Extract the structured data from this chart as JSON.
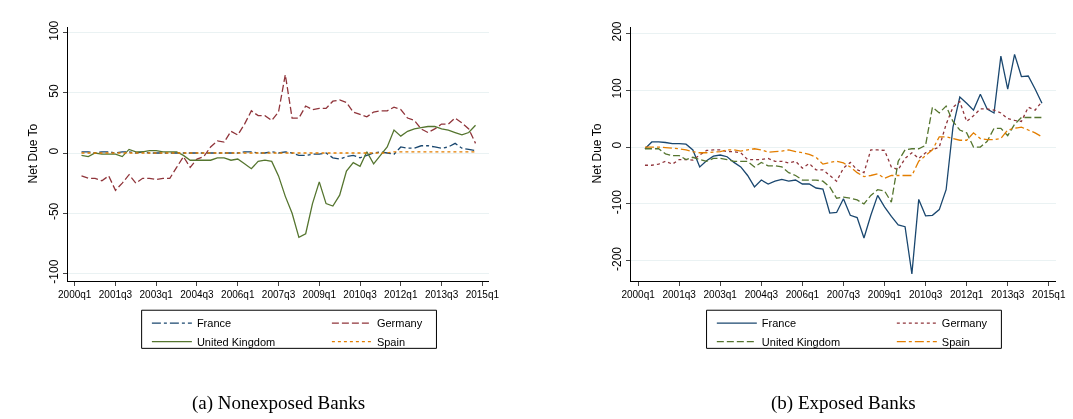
{
  "chart_data": [
    {
      "type": "line",
      "title": "(a) Nonexposed Banks",
      "ylabel": "Net Due To",
      "grid": "y",
      "legend": "bottom",
      "marker": "none",
      "categories": [
        "2000q1",
        null,
        null,
        null,
        null,
        null,
        "2001q3",
        null,
        null,
        null,
        null,
        null,
        "2003q1",
        null,
        null,
        null,
        null,
        null,
        "2004q3",
        null,
        null,
        null,
        null,
        null,
        "2006q1",
        null,
        null,
        null,
        null,
        null,
        "2007q3",
        null,
        null,
        null,
        null,
        null,
        "2009q1",
        null,
        null,
        null,
        null,
        null,
        "2010q3",
        null,
        null,
        null,
        null,
        null,
        "2012q1",
        null,
        null,
        null,
        null,
        null,
        "2013q3",
        null,
        null,
        null,
        null,
        null,
        "2015q1"
      ],
      "ylim": [
        -106,
        105
      ],
      "yticks": [
        -100,
        -50,
        0,
        50,
        100
      ],
      "series": [
        {
          "name": "France",
          "color": "#1a476f",
          "line_style": "dashdot",
          "values": [
            null,
            1,
            1,
            0,
            1,
            1,
            0,
            1,
            1,
            0,
            1,
            0,
            0,
            0,
            0,
            0,
            0,
            0,
            0,
            0,
            0,
            0,
            0,
            0,
            0,
            1,
            1,
            0,
            0,
            1,
            0,
            1,
            0,
            -2,
            -2,
            -1,
            -1,
            0,
            -4,
            -5,
            -3,
            -2,
            -4,
            -2,
            0,
            1,
            0,
            -1,
            5,
            4,
            4,
            6,
            6,
            5,
            4,
            5,
            8,
            4,
            3,
            2,
            null
          ]
        },
        {
          "name": "Germany",
          "color": "#90353b",
          "line_style": "longdash",
          "values": [
            null,
            -19,
            -21,
            -21,
            -23,
            -19,
            -31,
            -25,
            -18,
            -25,
            -21,
            -21,
            -22,
            -21,
            -21,
            -12,
            -3,
            -12,
            -5,
            -3,
            5,
            10,
            9,
            18,
            15,
            24,
            35,
            31,
            31,
            27,
            34,
            65,
            29,
            29,
            39,
            36,
            37,
            37,
            43,
            44,
            42,
            34,
            32,
            30,
            34,
            35,
            35,
            38,
            36,
            29,
            27,
            20,
            17,
            20,
            24,
            24,
            29,
            25,
            20,
            8,
            null
          ]
        },
        {
          "name": "United Kingdom",
          "color": "#55752f",
          "line_style": "solid",
          "values": [
            null,
            -2,
            -3,
            0,
            -1,
            -1,
            -1,
            -3,
            3,
            1,
            1,
            2,
            2,
            1,
            1,
            1,
            -2,
            -6,
            -6,
            -6,
            -6,
            -4,
            -4,
            -6,
            -5,
            -9,
            -13,
            -7,
            -6,
            -7,
            -19,
            -36,
            -50,
            -70,
            -67,
            -42,
            -24,
            -42,
            -44,
            -35,
            -15,
            -8,
            -11,
            1,
            -9,
            -2,
            5,
            19,
            14,
            18,
            20,
            21,
            22,
            22,
            20,
            19,
            17,
            15,
            17,
            23,
            null
          ]
        },
        {
          "name": "Spain",
          "color": "#e37e00",
          "line_style": "dotted",
          "values": [
            null,
            0,
            0,
            0,
            0,
            0,
            0,
            0,
            0,
            0,
            0,
            0,
            0,
            0,
            0,
            0,
            0,
            0,
            0,
            0,
            0,
            0,
            0,
            0,
            0,
            0,
            0,
            0,
            0,
            0,
            0,
            0,
            0,
            0,
            0,
            0,
            0,
            0,
            0,
            0,
            0,
            0,
            0,
            0,
            0,
            0,
            0,
            1,
            1,
            1,
            1,
            1,
            1,
            1,
            1,
            1,
            1,
            1,
            1,
            1,
            null
          ]
        }
      ]
    },
    {
      "type": "line",
      "title": "(b) Exposed Banks",
      "ylabel": "Net Due To",
      "grid": "y",
      "legend": "bottom",
      "marker": "none",
      "categories": [
        "2000q1",
        null,
        null,
        null,
        null,
        null,
        "2001q3",
        null,
        null,
        null,
        null,
        null,
        "2003q1",
        null,
        null,
        null,
        null,
        null,
        "2004q3",
        null,
        null,
        null,
        null,
        null,
        "2006q1",
        null,
        null,
        null,
        null,
        null,
        "2007q3",
        null,
        null,
        null,
        null,
        null,
        "2009q1",
        null,
        null,
        null,
        null,
        null,
        "2010q3",
        null,
        null,
        null,
        null,
        null,
        "2012q1",
        null,
        null,
        null,
        null,
        null,
        "2013q3",
        null,
        null,
        null,
        null,
        null,
        "2015q1"
      ],
      "ylim": [
        -235,
        212
      ],
      "yticks": [
        -200,
        -100,
        0,
        100,
        200
      ],
      "series": [
        {
          "name": "France",
          "color": "#1a476f",
          "line_style": "solid",
          "values": [
            null,
            -3,
            9,
            9,
            8,
            6,
            6,
            5,
            -5,
            -35,
            -24,
            -16,
            -14,
            -17,
            -27,
            -35,
            -50,
            -70,
            -58,
            -65,
            -60,
            -57,
            -60,
            -58,
            -65,
            -65,
            -72,
            -74,
            -116,
            -115,
            -91,
            -120,
            -124,
            -160,
            -120,
            -85,
            -105,
            -122,
            -137,
            -140,
            -223,
            -92,
            -121,
            -120,
            -110,
            -75,
            35,
            88,
            77,
            65,
            93,
            67,
            60,
            160,
            102,
            163,
            124,
            125,
            102,
            77,
            null
          ]
        },
        {
          "name": "Germany",
          "color": "#90353b",
          "line_style": "dotted",
          "values": [
            null,
            -32,
            -32,
            -30,
            -25,
            -30,
            -22,
            -22,
            -23,
            -14,
            -6,
            -5,
            -5,
            -8,
            -8,
            -10,
            -22,
            -22,
            -22,
            -20,
            -25,
            -25,
            -28,
            -25,
            -37,
            -29,
            -40,
            -40,
            -50,
            -60,
            -37,
            -27,
            -40,
            -45,
            -5,
            -5,
            -6,
            -35,
            -40,
            -20,
            -10,
            -20,
            -10,
            -5,
            0,
            40,
            70,
            80,
            45,
            55,
            67,
            67,
            65,
            60,
            50,
            47,
            45,
            70,
            65,
            80,
            null
          ]
        },
        {
          "name": "United Kingdom",
          "color": "#55752f",
          "line_style": "longdash",
          "values": [
            null,
            -3,
            -3,
            -3,
            -12,
            -15,
            -15,
            -22,
            -18,
            -22,
            -25,
            -20,
            -20,
            -22,
            -25,
            -25,
            -25,
            -35,
            -27,
            -33,
            -33,
            -35,
            -45,
            -50,
            -58,
            -58,
            -58,
            -60,
            -70,
            -90,
            -88,
            -90,
            -93,
            -100,
            -85,
            -75,
            -77,
            -97,
            -25,
            -5,
            -3,
            -3,
            3,
            70,
            60,
            72,
            45,
            30,
            25,
            0,
            0,
            10,
            33,
            33,
            20,
            40,
            52,
            52,
            52,
            52,
            null
          ]
        },
        {
          "name": "Spain",
          "color": "#e37e00",
          "line_style": "dashdot",
          "values": [
            null,
            0,
            0,
            0,
            -1,
            -2,
            -3,
            -5,
            -8,
            -10,
            -10,
            -9,
            -8,
            -5,
            -5,
            -7,
            -5,
            -3,
            -5,
            -9,
            -8,
            -7,
            -5,
            -8,
            -10,
            -13,
            -18,
            -30,
            -27,
            -25,
            -28,
            -35,
            -45,
            -52,
            -50,
            -47,
            -55,
            -50,
            -50,
            -50,
            -50,
            -25,
            -15,
            -5,
            18,
            18,
            15,
            12,
            12,
            25,
            15,
            13,
            13,
            15,
            30,
            33,
            35,
            30,
            25,
            18,
            null
          ]
        }
      ]
    }
  ]
}
